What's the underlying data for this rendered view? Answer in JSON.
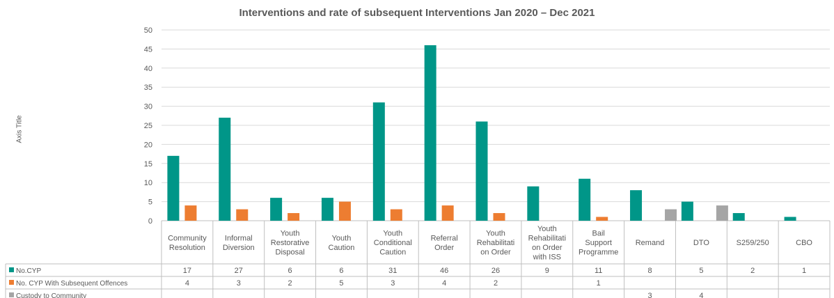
{
  "chart_data": {
    "type": "bar",
    "title": "Interventions and rate of subsequent Interventions Jan 2020 – Dec 2021",
    "ylabel": "Axis Title",
    "xlabel": "",
    "ylim": [
      0,
      50
    ],
    "yticks": [
      "0",
      "5",
      "10",
      "15",
      "20",
      "25",
      "30",
      "35",
      "40",
      "45",
      "50"
    ],
    "grid": true,
    "legend": "data-table",
    "categories": [
      [
        "Community",
        "Resolution"
      ],
      [
        "Informal",
        "Diversion"
      ],
      [
        "Youth",
        "Restorative",
        "Disposal"
      ],
      [
        "Youth",
        "Caution"
      ],
      [
        "Youth",
        "Conditional",
        "Caution"
      ],
      [
        "Referral",
        "Order"
      ],
      [
        "Youth",
        "Rehabilitati",
        "on Order"
      ],
      [
        "Youth",
        "Rehabilitati",
        "on Order",
        "with ISS"
      ],
      [
        "Bail",
        "Support",
        "Programme"
      ],
      [
        "Remand"
      ],
      [
        "DTO"
      ],
      [
        "S259/250"
      ],
      [
        "CBO"
      ]
    ],
    "series": [
      {
        "name": "No.CYP",
        "color": "#009688",
        "values": [
          17,
          27,
          6,
          6,
          31,
          46,
          26,
          9,
          11,
          8,
          5,
          2,
          1
        ]
      },
      {
        "name": "No. CYP With Subsequent Offences",
        "color": "#ED7D31",
        "values": [
          4,
          3,
          2,
          5,
          3,
          4,
          2,
          null,
          1,
          null,
          null,
          null,
          null
        ]
      },
      {
        "name": "Custody to Community",
        "color": "#A5A5A5",
        "values": [
          null,
          null,
          null,
          null,
          null,
          null,
          null,
          null,
          null,
          3,
          4,
          null,
          null
        ]
      }
    ]
  }
}
